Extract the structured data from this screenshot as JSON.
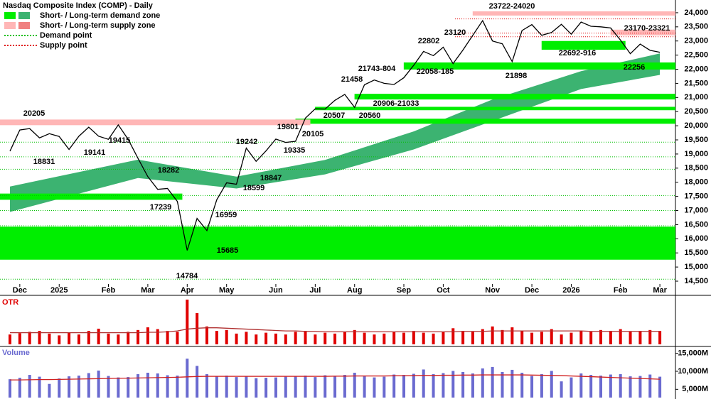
{
  "chart_data": [
    {
      "type": "price",
      "title": "Nasdaq Composite Index (COMP) - Daily",
      "categories": [
        null,
        "Dec",
        null,
        null,
        null,
        "2025",
        null,
        null,
        null,
        null,
        "Feb",
        null,
        null,
        null,
        "Mar",
        null,
        null,
        null,
        "Apr",
        null,
        null,
        null,
        "May",
        null,
        null,
        null,
        null,
        "Jun",
        null,
        null,
        null,
        "Jul",
        null,
        null,
        null,
        "Aug",
        null,
        null,
        null,
        null,
        "Sep",
        null,
        null,
        null,
        "Oct",
        null,
        null,
        null,
        null,
        "Nov",
        null,
        null,
        null,
        "Dec",
        null,
        null,
        null,
        "2026",
        null,
        null,
        null,
        null,
        "Feb",
        null,
        null,
        null,
        "Mar"
      ],
      "values": [
        19100,
        19850,
        19900,
        19570,
        19720,
        19620,
        19160,
        19630,
        19950,
        19630,
        19520,
        20030,
        19520,
        18850,
        18200,
        17750,
        17780,
        17320,
        15590,
        16720,
        16290,
        17380,
        17980,
        17930,
        19210,
        18740,
        19110,
        19530,
        19410,
        19450,
        20270,
        20600,
        20590,
        20900,
        21110,
        20650,
        21450,
        21620,
        21500,
        21460,
        21700,
        22140,
        22630,
        22480,
        22780,
        22200,
        22680,
        23200,
        23720,
        23000,
        22900,
        22270,
        23370,
        23580,
        23200,
        23300,
        23590,
        23240,
        23670,
        23520,
        23500,
        23460,
        23030,
        22550,
        22890,
        22670,
        22600
      ],
      "color": "#000000",
      "ylim": [
        14400,
        24400
      ],
      "yticks": [
        {
          "value": 14500,
          "label": "14,500"
        },
        {
          "value": 15000,
          "label": "15,000"
        },
        {
          "value": 15500,
          "label": "15,500"
        },
        {
          "value": 16000,
          "label": "16,000"
        },
        {
          "value": 16500,
          "label": "16,500"
        },
        {
          "value": 17000,
          "label": "17,000"
        },
        {
          "value": 17500,
          "label": "17,500"
        },
        {
          "value": 18000,
          "label": "18,000"
        },
        {
          "value": 18500,
          "label": "18,500"
        },
        {
          "value": 19000,
          "label": "19,000"
        },
        {
          "value": 19500,
          "label": "19,500"
        },
        {
          "value": 20000,
          "label": "20,000"
        },
        {
          "value": 20500,
          "label": "20,500"
        },
        {
          "value": 21000,
          "label": "21,000"
        },
        {
          "value": 21500,
          "label": "21,500"
        },
        {
          "value": 22000,
          "label": "22,000"
        },
        {
          "value": 22500,
          "label": "22,500"
        },
        {
          "value": 23000,
          "label": "23,000"
        },
        {
          "value": 23500,
          "label": "23,500"
        },
        {
          "value": 24000,
          "label": "24,000"
        }
      ],
      "long_term_band": {
        "color": "#3cb371",
        "x": [
          0,
          13,
          23,
          32,
          41,
          49,
          58,
          66
        ],
        "upper": [
          17850,
          18800,
          18200,
          18790,
          19800,
          20930,
          21930,
          22560
        ],
        "lower": [
          16950,
          18150,
          17780,
          18280,
          19160,
          20170,
          21300,
          21800
        ]
      },
      "zones": [
        {
          "kind": "demand",
          "low": 15260,
          "high": 16430,
          "start": 0,
          "end": 66
        },
        {
          "kind": "demand",
          "low": 17380,
          "high": 17600,
          "start": 0,
          "end": 17
        },
        {
          "kind": "demand",
          "low": 20070,
          "high": 20250,
          "start": 30,
          "end": 66
        },
        {
          "kind": "demand",
          "low": 20550,
          "high": 20670,
          "start": 32,
          "end": 66
        },
        {
          "kind": "demand",
          "low": 20930,
          "high": 21130,
          "start": 36,
          "end": 66
        },
        {
          "kind": "demand",
          "low": 21990,
          "high": 22240,
          "start": 41,
          "end": 66
        },
        {
          "kind": "demand",
          "low": 22690,
          "high": 23000,
          "start": 55,
          "end": 62
        },
        {
          "kind": "supply",
          "low": 20020,
          "high": 20220,
          "start": 0,
          "end": 30
        },
        {
          "kind": "supply",
          "low": 23900,
          "high": 24050,
          "start": 48,
          "end": 66
        },
        {
          "kind": "supply",
          "low": 23200,
          "high": 23400,
          "start": 62,
          "end": 66
        }
      ],
      "zone_colors": {
        "demand": "#00ee00",
        "supply": "#ffb6b6"
      },
      "demand_points": [
        19420,
        18900,
        18460,
        17530,
        17000,
        16460,
        14570
      ],
      "supply_points": [
        23780,
        23280,
        23150
      ],
      "annotations": [
        "20205",
        "18831",
        "19141",
        "19415",
        "18282",
        "17239",
        "14784",
        "15685",
        "16959",
        "18599",
        "18847",
        "19242",
        "19335",
        "19801",
        "20105",
        "20507",
        "20560",
        "20906-21033",
        "21458",
        "21743-804",
        "22058-185",
        "22802",
        "23120",
        "23722-24020",
        "21898",
        "22692-916",
        "23170-23321",
        "22256"
      ],
      "legend": [
        "Short- / Long-term demand zone",
        "Short- / Long-term supply zone",
        "Demand point",
        "Supply point"
      ]
    },
    {
      "type": "otr",
      "title": "OTR",
      "color": "#e00000",
      "average_color": "#b03030",
      "ylim": [
        0,
        100
      ],
      "values": [
        22,
        25,
        28,
        30,
        24,
        20,
        26,
        22,
        30,
        35,
        24,
        22,
        28,
        32,
        38,
        34,
        30,
        28,
        100,
        70,
        40,
        30,
        32,
        24,
        28,
        22,
        26,
        24,
        22,
        28,
        30,
        22,
        26,
        24,
        28,
        32,
        26,
        22,
        24,
        28,
        26,
        30,
        26,
        24,
        28,
        36,
        30,
        28,
        34,
        40,
        32,
        38,
        30,
        26,
        28,
        34,
        22,
        26,
        30,
        28,
        32,
        30,
        34,
        28,
        30,
        32,
        30
      ],
      "average": [
        26,
        26,
        26,
        26,
        26,
        26,
        26,
        26,
        26,
        26,
        26,
        26,
        26,
        26,
        27,
        27,
        28,
        30,
        34,
        36,
        37,
        37,
        36,
        35,
        34,
        33,
        32,
        31,
        30,
        30,
        29,
        29,
        28,
        28,
        28,
        28,
        28,
        28,
        28,
        28,
        28,
        28,
        28,
        28,
        28,
        28,
        29,
        29,
        29,
        30,
        30,
        30,
        30,
        30,
        30,
        30,
        30,
        30,
        30,
        29,
        29,
        29,
        29,
        29,
        29,
        29,
        29
      ]
    },
    {
      "type": "volume",
      "title": "Volume",
      "color": "#6a6ad0",
      "average_color": "#d02020",
      "ylim": [
        2700,
        16500
      ],
      "yticks": [
        {
          "value": 5000,
          "label": "5,000M"
        },
        {
          "value": 10000,
          "label": "10,000M"
        },
        {
          "value": 15000,
          "label": "15,000M"
        }
      ],
      "values": [
        7800,
        8200,
        9000,
        8500,
        6500,
        8000,
        8600,
        8800,
        9500,
        10200,
        8700,
        8300,
        8400,
        9200,
        9600,
        9400,
        8900,
        8800,
        13500,
        11500,
        9200,
        8600,
        8800,
        8400,
        8600,
        8100,
        8200,
        8300,
        8500,
        8700,
        8800,
        8400,
        8900,
        8700,
        9000,
        9600,
        8600,
        8300,
        8500,
        9100,
        9000,
        9300,
        10500,
        9200,
        9500,
        10100,
        9800,
        9400,
        10800,
        11200,
        9800,
        10400,
        9600,
        8700,
        9200,
        10100,
        7200,
        8300,
        9400,
        9000,
        8800,
        9100,
        9200,
        8600,
        8700,
        9100,
        8500
      ],
      "average": [
        7600,
        7600,
        7650,
        7700,
        7700,
        7750,
        7800,
        7850,
        7900,
        7950,
        8000,
        8050,
        8100,
        8150,
        8200,
        8250,
        8300,
        8350,
        8450,
        8550,
        8600,
        8600,
        8600,
        8600,
        8600,
        8600,
        8600,
        8600,
        8600,
        8600,
        8600,
        8600,
        8600,
        8650,
        8650,
        8700,
        8700,
        8700,
        8700,
        8750,
        8750,
        8800,
        8850,
        8850,
        8900,
        8900,
        8950,
        8950,
        9000,
        9000,
        9000,
        9000,
        9000,
        8950,
        8900,
        8850,
        8800,
        8700,
        8600,
        8500,
        8400,
        8300,
        8200,
        8100,
        8000,
        7900,
        7800
      ]
    }
  ]
}
